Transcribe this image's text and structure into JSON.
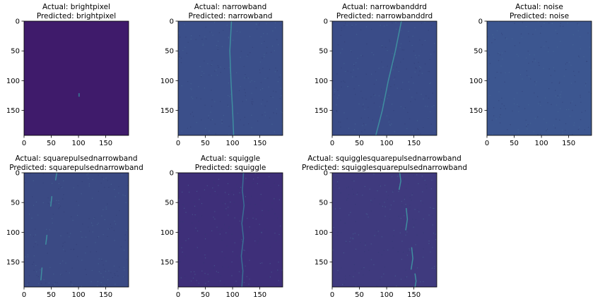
{
  "chart_data": [
    {
      "type": "heatmap",
      "title_line1": "Actual: brightpixel",
      "title_line2": "Predicted: brightpixel",
      "xlim": [
        0,
        192
      ],
      "ylim": [
        192,
        0
      ],
      "xticks": [
        0,
        50,
        100,
        150
      ],
      "yticks": [
        0,
        50,
        100,
        150
      ],
      "colormap": "viridis",
      "background_color": "#3f1b6b",
      "features": [
        {
          "kind": "dot",
          "x": 101,
          "y": 124,
          "color": "#3a6a8e"
        }
      ]
    },
    {
      "type": "heatmap",
      "title_line1": "Actual: narrowband",
      "title_line2": "Predicted: narrowband",
      "xlim": [
        0,
        192
      ],
      "ylim": [
        192,
        0
      ],
      "xticks": [
        0,
        50,
        100,
        150
      ],
      "yticks": [
        0,
        50,
        100,
        150
      ],
      "colormap": "viridis",
      "background_color": "#3b4f8a",
      "features": [
        {
          "kind": "line",
          "points": [
            [
              98,
              0
            ],
            [
              95,
              50
            ],
            [
              97,
              100
            ],
            [
              100,
              150
            ],
            [
              102,
              192
            ]
          ],
          "color": "#3f8ea0"
        }
      ]
    },
    {
      "type": "heatmap",
      "title_line1": "Actual: narrowbanddrd",
      "title_line2": "Predicted: narrowbanddrd",
      "xlim": [
        0,
        192
      ],
      "ylim": [
        192,
        0
      ],
      "xticks": [
        0,
        50,
        100,
        150
      ],
      "yticks": [
        0,
        50,
        100,
        150
      ],
      "colormap": "viridis",
      "background_color": "#3a4c88",
      "features": [
        {
          "kind": "line",
          "points": [
            [
              127,
              0
            ],
            [
              116,
              50
            ],
            [
              103,
              100
            ],
            [
              92,
              150
            ],
            [
              80,
              192
            ]
          ],
          "color": "#3f8ea0"
        }
      ]
    },
    {
      "type": "heatmap",
      "title_line1": "Actual: noise",
      "title_line2": "Predicted: noise",
      "xlim": [
        0,
        192
      ],
      "ylim": [
        192,
        0
      ],
      "xticks": [
        0,
        50,
        100,
        150
      ],
      "yticks": [
        0,
        50,
        100,
        150
      ],
      "colormap": "viridis",
      "background_color": "#3c5690",
      "features": []
    },
    {
      "type": "heatmap",
      "title_line1": "Actual: squarepulsednarrowband",
      "title_line2": "Predicted: squarepulsednarrowband",
      "xlim": [
        0,
        192
      ],
      "ylim": [
        192,
        0
      ],
      "xticks": [
        0,
        50,
        100,
        150
      ],
      "yticks": [
        0,
        50,
        100,
        150
      ],
      "colormap": "viridis",
      "background_color": "#3b4a84",
      "features": [
        {
          "kind": "line",
          "points": [
            [
              60,
              0
            ],
            [
              58,
              12
            ]
          ],
          "color": "#3f8ea0"
        },
        {
          "kind": "line",
          "points": [
            [
              51,
              40
            ],
            [
              49,
              56
            ]
          ],
          "color": "#3f8ea0"
        },
        {
          "kind": "line",
          "points": [
            [
              42,
              105
            ],
            [
              40,
              120
            ]
          ],
          "color": "#3f8ea0"
        },
        {
          "kind": "line",
          "points": [
            [
              33,
              160
            ],
            [
              31,
              180
            ]
          ],
          "color": "#3f8ea0"
        }
      ]
    },
    {
      "type": "heatmap",
      "title_line1": "Actual: squiggle",
      "title_line2": "Predicted: squiggle",
      "xlim": [
        0,
        192
      ],
      "ylim": [
        192,
        0
      ],
      "xticks": [
        0,
        50,
        100,
        150
      ],
      "yticks": [
        0,
        50,
        100,
        150
      ],
      "colormap": "viridis",
      "background_color": "#3e2f79",
      "features": [
        {
          "kind": "line",
          "points": [
            [
              120,
              0
            ],
            [
              118,
              30
            ],
            [
              121,
              55
            ],
            [
              117,
              85
            ],
            [
              120,
              110
            ],
            [
              116,
              140
            ],
            [
              119,
              165
            ],
            [
              117,
              192
            ]
          ],
          "color": "#3a6f95"
        }
      ]
    },
    {
      "type": "heatmap",
      "title_line1": "Actual: squigglesquarepulsednarrowband",
      "title_line2": "Predicted: squigglesquarepulsednarrowband",
      "xlim": [
        0,
        192
      ],
      "ylim": [
        192,
        0
      ],
      "xticks": [
        0,
        50,
        100,
        150
      ],
      "yticks": [
        0,
        50,
        100,
        150
      ],
      "colormap": "viridis",
      "background_color": "#3f3a7e",
      "features": [
        {
          "kind": "line",
          "points": [
            [
              124,
              0
            ],
            [
              126,
              14
            ],
            [
              123,
              28
            ]
          ],
          "color": "#3f8ea0"
        },
        {
          "kind": "line",
          "points": [
            [
              136,
              60
            ],
            [
              138,
              78
            ],
            [
              135,
              96
            ]
          ],
          "color": "#3f8ea0"
        },
        {
          "kind": "line",
          "points": [
            [
              146,
              126
            ],
            [
              148,
              144
            ],
            [
              145,
              162
            ]
          ],
          "color": "#3f8ea0"
        },
        {
          "kind": "line",
          "points": [
            [
              152,
              170
            ],
            [
              154,
              182
            ],
            [
              152,
              192
            ]
          ],
          "color": "#3f8ea0"
        }
      ]
    }
  ]
}
